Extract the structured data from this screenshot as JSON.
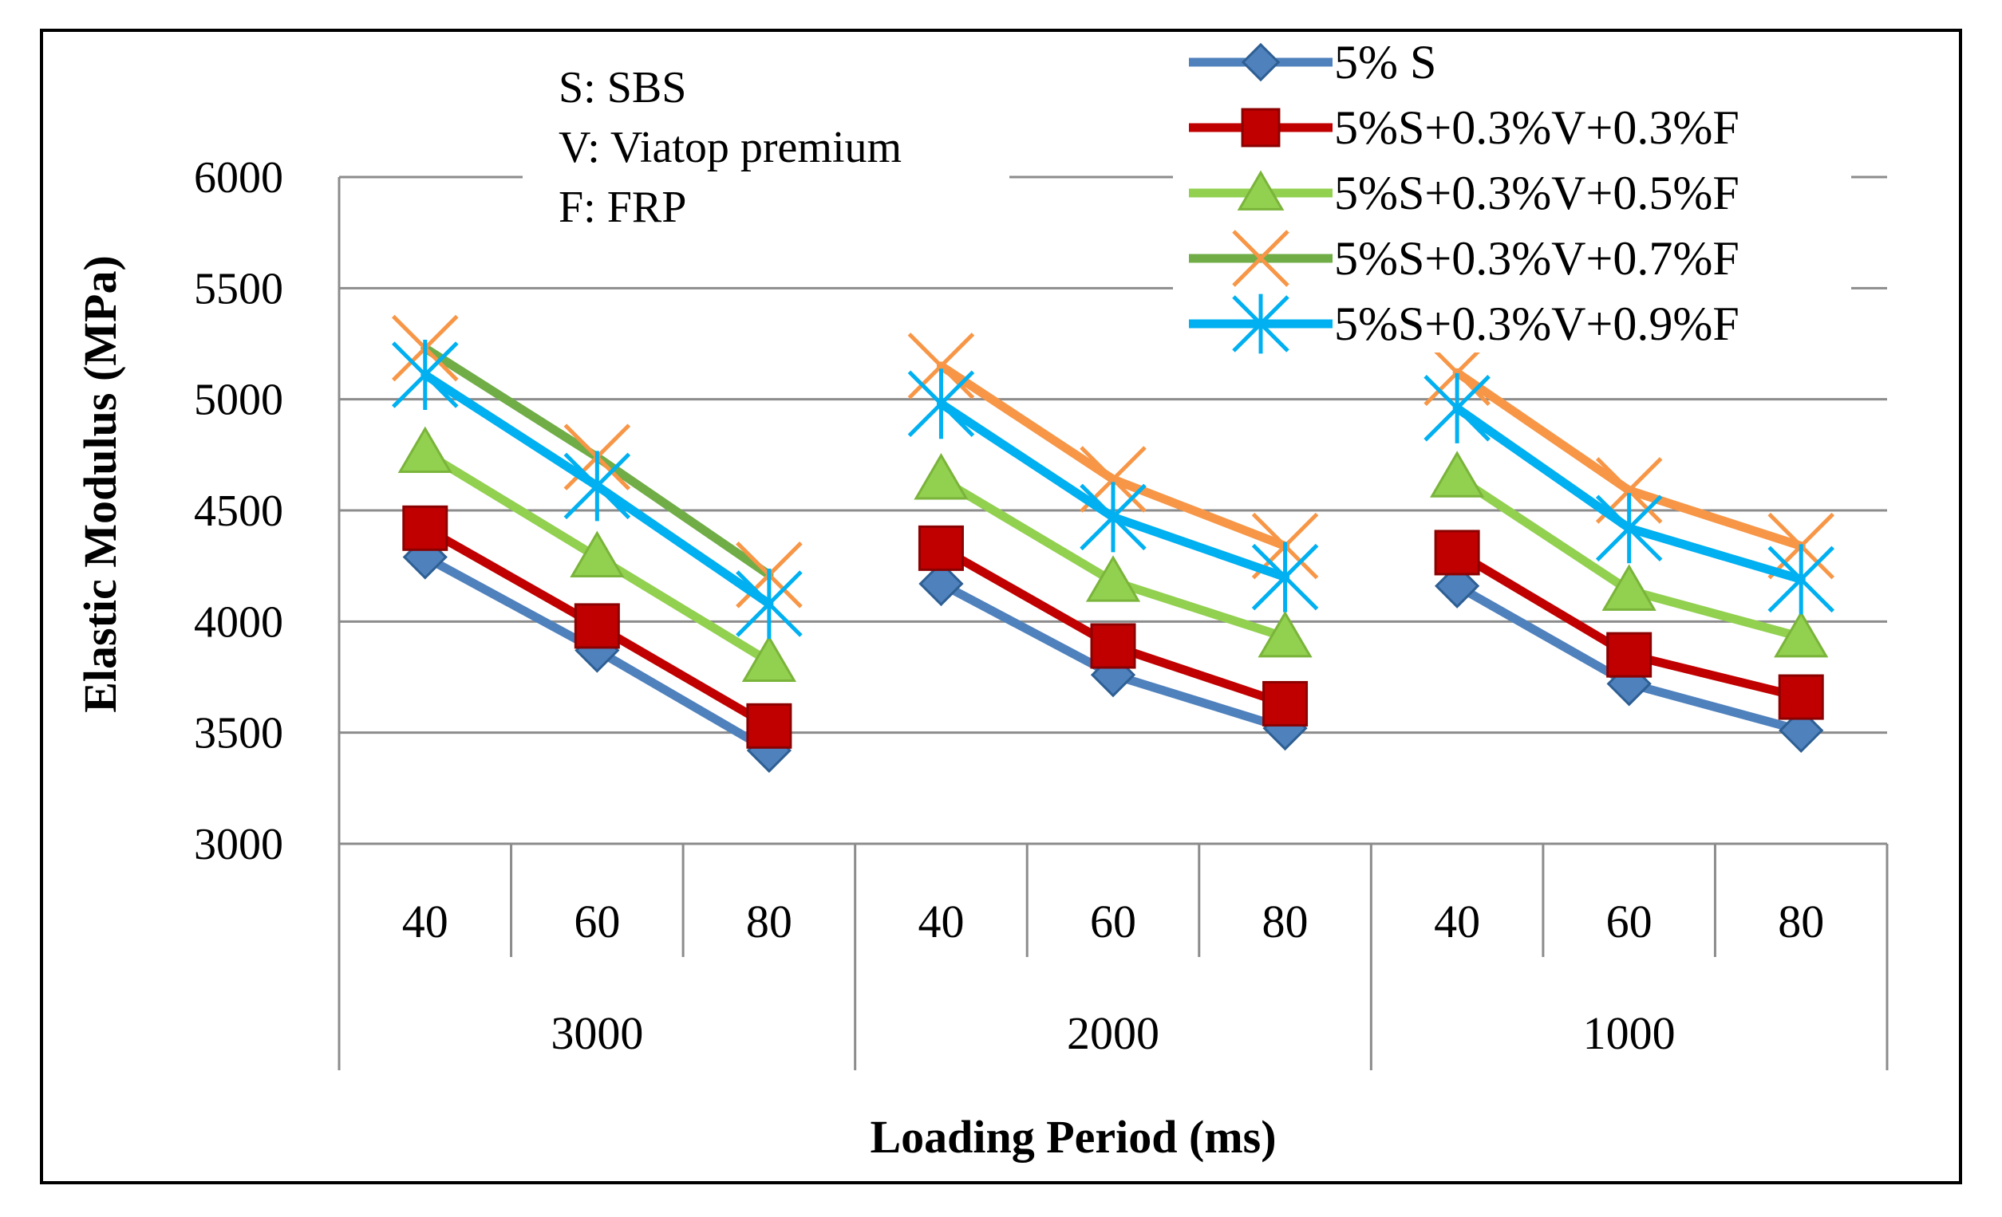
{
  "chart_data": {
    "type": "line",
    "title": "",
    "xlabel": "Loading Period (ms)",
    "ylabel": "Elastic Modulus (MPa)",
    "ylim": [
      3000,
      6000
    ],
    "yticks": [
      3000,
      3500,
      4000,
      4500,
      5000,
      5500,
      6000
    ],
    "grid": "horizontal",
    "legend_position": "top-right",
    "groups": [
      {
        "label": "3000",
        "categories": [
          "40",
          "60",
          "80"
        ]
      },
      {
        "label": "2000",
        "categories": [
          "40",
          "60",
          "80"
        ]
      },
      {
        "label": "1000",
        "categories": [
          "40",
          "60",
          "80"
        ]
      }
    ],
    "series": [
      {
        "name": "5% S",
        "color": "#4f81bd",
        "marker": "diamond",
        "values": [
          4290,
          3870,
          3420,
          4170,
          3760,
          3520,
          4160,
          3720,
          3510
        ]
      },
      {
        "name": "5%S+0.3%V+0.3%F",
        "color": "#c00000",
        "marker": "square",
        "values": [
          4420,
          3980,
          3530,
          4330,
          3890,
          3630,
          4310,
          3850,
          3660
        ]
      },
      {
        "name": "5%S+0.3%V+0.5%F",
        "color": "#92d050",
        "marker": "triangle",
        "values": [
          4760,
          4290,
          3820,
          4640,
          4180,
          3930,
          4650,
          4140,
          3930
        ]
      },
      {
        "name": "5%S+0.3%V+0.7%F",
        "color": "#70ad47",
        "marker": "x",
        "marker_color": "#f79646",
        "segment_colors": [
          "#70ad47",
          "#f79646",
          "#f79646"
        ],
        "values": [
          5230,
          4740,
          4210,
          5150,
          4640,
          4340,
          5120,
          4590,
          4340
        ]
      },
      {
        "name": "5%S+0.3%V+0.9%F",
        "color": "#00b0f0",
        "marker": "star",
        "values": [
          5110,
          4610,
          4080,
          4980,
          4470,
          4200,
          4960,
          4420,
          4190
        ]
      }
    ],
    "annotations": [
      "S: SBS",
      "V: Viatop premium",
      "F: FRP"
    ]
  }
}
